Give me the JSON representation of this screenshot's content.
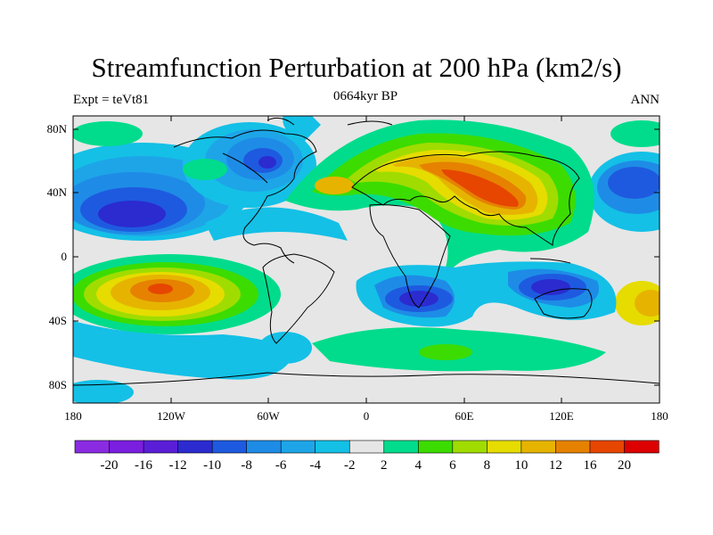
{
  "title": "Streamfunction Perturbation at 200 hPa (km2/s)",
  "subtitle_left": "Expt = teVt81",
  "subtitle_center": "0664kyr BP",
  "subtitle_right": "ANN",
  "y_ticks": [
    "80N",
    "40N",
    "0",
    "40S",
    "80S"
  ],
  "x_ticks": [
    "180",
    "120W",
    "60W",
    "0",
    "60E",
    "120E",
    "180"
  ],
  "colorbar": {
    "colors": [
      "#8a2be2",
      "#7a1ee0",
      "#5a1ed6",
      "#2b2bd0",
      "#1e5ae0",
      "#1e8ce6",
      "#1ea5e8",
      "#14c0e6",
      "#e6e6e6",
      "#00dc8c",
      "#3cdc00",
      "#a0dc00",
      "#e6dc00",
      "#e6b400",
      "#e68200",
      "#e64600",
      "#dc0000"
    ],
    "labels": [
      "-20",
      "-16",
      "-12",
      "-10",
      "-8",
      "-6",
      "-4",
      "-2",
      "2",
      "4",
      "6",
      "8",
      "10",
      "12",
      "16",
      "20"
    ]
  },
  "legend_colors": {
    "neutral": "#e6e6e6",
    "land_outline": "#000000"
  }
}
